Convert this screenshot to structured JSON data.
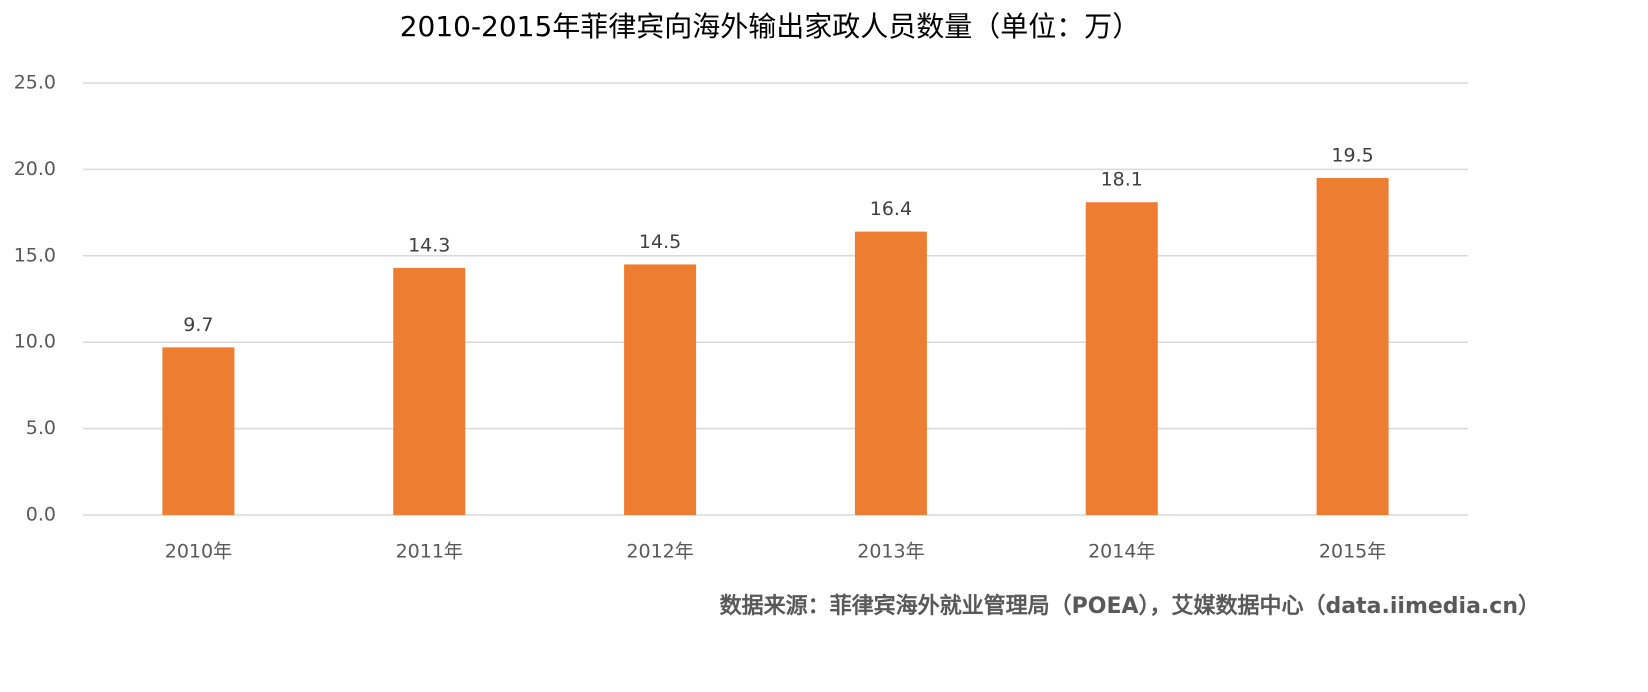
{
  "chart_data": {
    "type": "bar",
    "title": "2010-2015年菲律宾向海外输出家政人员数量（单位：万）",
    "categories": [
      "2010年",
      "2011年",
      "2012年",
      "2013年",
      "2014年",
      "2015年"
    ],
    "values": [
      9.7,
      14.3,
      14.5,
      16.4,
      18.1,
      19.5
    ],
    "color": "#ed7d31",
    "ylim": [
      0,
      25
    ],
    "yticks": [
      {
        "value": 0,
        "label": "0.0"
      },
      {
        "value": 5,
        "label": "5.0"
      },
      {
        "value": 10,
        "label": "10.0"
      },
      {
        "value": 15,
        "label": "15.0"
      },
      {
        "value": 20,
        "label": "20.0"
      },
      {
        "value": 25,
        "label": "25.0"
      }
    ],
    "grid": true,
    "source": "数据来源：菲律宾海外就业管理局（POEA），艾媒数据中心（data.iimedia.cn）"
  }
}
